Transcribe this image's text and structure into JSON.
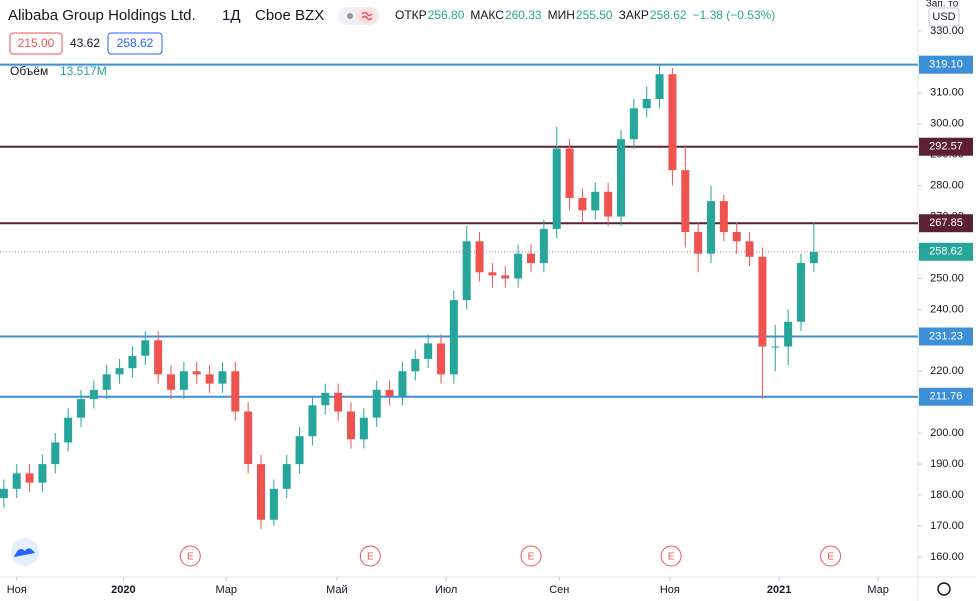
{
  "header": {
    "title": "Alibaba Group Holdings Ltd.",
    "interval": "1Д",
    "exchange": "Cboe BZX",
    "ohlc": [
      {
        "label": "ОТКР",
        "value": "256.80"
      },
      {
        "label": "МАКС",
        "value": "260.33"
      },
      {
        "label": "МИН",
        "value": "255.50"
      },
      {
        "label": "ЗАКР",
        "value": "258.62"
      }
    ],
    "change": "−1.38 (−0.53%)",
    "buttons": [
      "215.00",
      "43.62",
      "258.62"
    ],
    "volume_label": "Объём",
    "volume_value": "13.517M",
    "scale_caption": "Зап. то",
    "currency": "USD"
  },
  "chart_data": {
    "type": "candlestick",
    "up_color": "#26a69a",
    "down_color": "#ef5350",
    "open": [
      179,
      182,
      187,
      184,
      190,
      197,
      205,
      211,
      214,
      219,
      221,
      225,
      230,
      219,
      214,
      220,
      219,
      216,
      220,
      207,
      190,
      172,
      182,
      190,
      199,
      209,
      213,
      207,
      198,
      205,
      214,
      212,
      220,
      224,
      229,
      219,
      243,
      262,
      252,
      251,
      250,
      258,
      255,
      266,
      292,
      276,
      272,
      278,
      270,
      295,
      305,
      308,
      316,
      285,
      265,
      258,
      275,
      265,
      262,
      257,
      228,
      228,
      236,
      255
    ],
    "high": [
      185,
      190,
      190,
      193,
      200,
      208,
      214,
      217,
      222,
      224,
      228,
      233,
      233,
      222,
      223,
      223,
      222,
      223,
      223,
      210,
      193,
      185,
      193,
      202,
      212,
      216,
      216,
      210,
      208,
      217,
      217,
      223,
      227,
      232,
      232,
      246,
      267,
      265,
      255,
      254,
      261,
      261,
      269,
      299,
      295,
      279,
      281,
      281,
      298,
      308,
      312,
      319.5,
      318,
      293,
      268,
      280,
      277,
      268,
      265,
      260,
      235,
      240,
      258,
      268
    ],
    "low": [
      176,
      179,
      181,
      181,
      187,
      194,
      202,
      208,
      211,
      216,
      218,
      222,
      216,
      211,
      211,
      216,
      213,
      213,
      204,
      187,
      169,
      170,
      179,
      187,
      196,
      206,
      204,
      195,
      195,
      202,
      209,
      209,
      217,
      221,
      216,
      216,
      240,
      249,
      247,
      247,
      247,
      252,
      252,
      263,
      272,
      268,
      269,
      267,
      267,
      292,
      302,
      305,
      280,
      260,
      252,
      255,
      262,
      258,
      254,
      211,
      220,
      222,
      233,
      252
    ],
    "close": [
      182,
      187,
      184,
      190,
      197,
      205,
      211,
      214,
      219,
      221,
      225,
      230,
      219,
      214,
      220,
      219,
      216,
      220,
      207,
      190,
      172,
      182,
      190,
      199,
      209,
      213,
      207,
      198,
      205,
      214,
      212,
      220,
      224,
      229,
      219,
      243,
      262,
      252,
      251,
      250,
      258,
      255,
      266,
      292,
      276,
      272,
      278,
      270,
      295,
      305,
      308,
      316,
      285,
      265,
      258,
      275,
      265,
      262,
      257,
      228,
      228,
      236,
      255,
      258.62
    ],
    "xlim": [
      -0.3,
      71.1
    ],
    "xticks": [
      {
        "value": 1,
        "label": "Ноя"
      },
      {
        "value": 9.3,
        "label": "2020"
      },
      {
        "value": 17.3,
        "label": "Мар"
      },
      {
        "value": 25.9,
        "label": "Май"
      },
      {
        "value": 34.4,
        "label": "Июл"
      },
      {
        "value": 43.2,
        "label": "Сен"
      },
      {
        "value": 51.8,
        "label": "Ноя"
      },
      {
        "value": 60.3,
        "label": "2021"
      },
      {
        "value": 68,
        "label": "Мар"
      }
    ],
    "ylim": [
      153.5,
      340
    ],
    "yticks": [
      {
        "value": 160,
        "label": "160.00"
      },
      {
        "value": 170,
        "label": "170.00"
      },
      {
        "value": 180,
        "label": "180.00"
      },
      {
        "value": 190,
        "label": "190.00"
      },
      {
        "value": 200,
        "label": "200.00"
      },
      {
        "value": 210,
        "label": "210.00"
      },
      {
        "value": 220,
        "label": "220.00"
      },
      {
        "value": 230,
        "label": "230.00"
      },
      {
        "value": 240,
        "label": "240.00"
      },
      {
        "value": 250,
        "label": "250.00"
      },
      {
        "value": 260,
        "label": "260.00"
      },
      {
        "value": 270,
        "label": "270.00"
      },
      {
        "value": 280,
        "label": "280.00"
      },
      {
        "value": 290,
        "label": "290.00"
      },
      {
        "value": 300,
        "label": "300.00"
      },
      {
        "value": 310,
        "label": "310.00"
      },
      {
        "value": 320,
        "label": "320.00"
      },
      {
        "value": 330,
        "label": "330.00"
      }
    ],
    "levels": [
      {
        "value": 319.1,
        "label": "319.10",
        "color": "#3d8fd6"
      },
      {
        "value": 292.57,
        "label": "292.57",
        "color": "#5b2035"
      },
      {
        "value": 267.85,
        "label": "267.85",
        "color": "#5b2035"
      },
      {
        "value": 231.23,
        "label": "231.23",
        "color": "#3d8fd6"
      },
      {
        "value": 211.76,
        "label": "211.76",
        "color": "#3d8fd6"
      }
    ],
    "earnings_label": "E",
    "earnings_at": [
      14.5,
      28.5,
      41,
      51.9,
      64.3
    ]
  }
}
